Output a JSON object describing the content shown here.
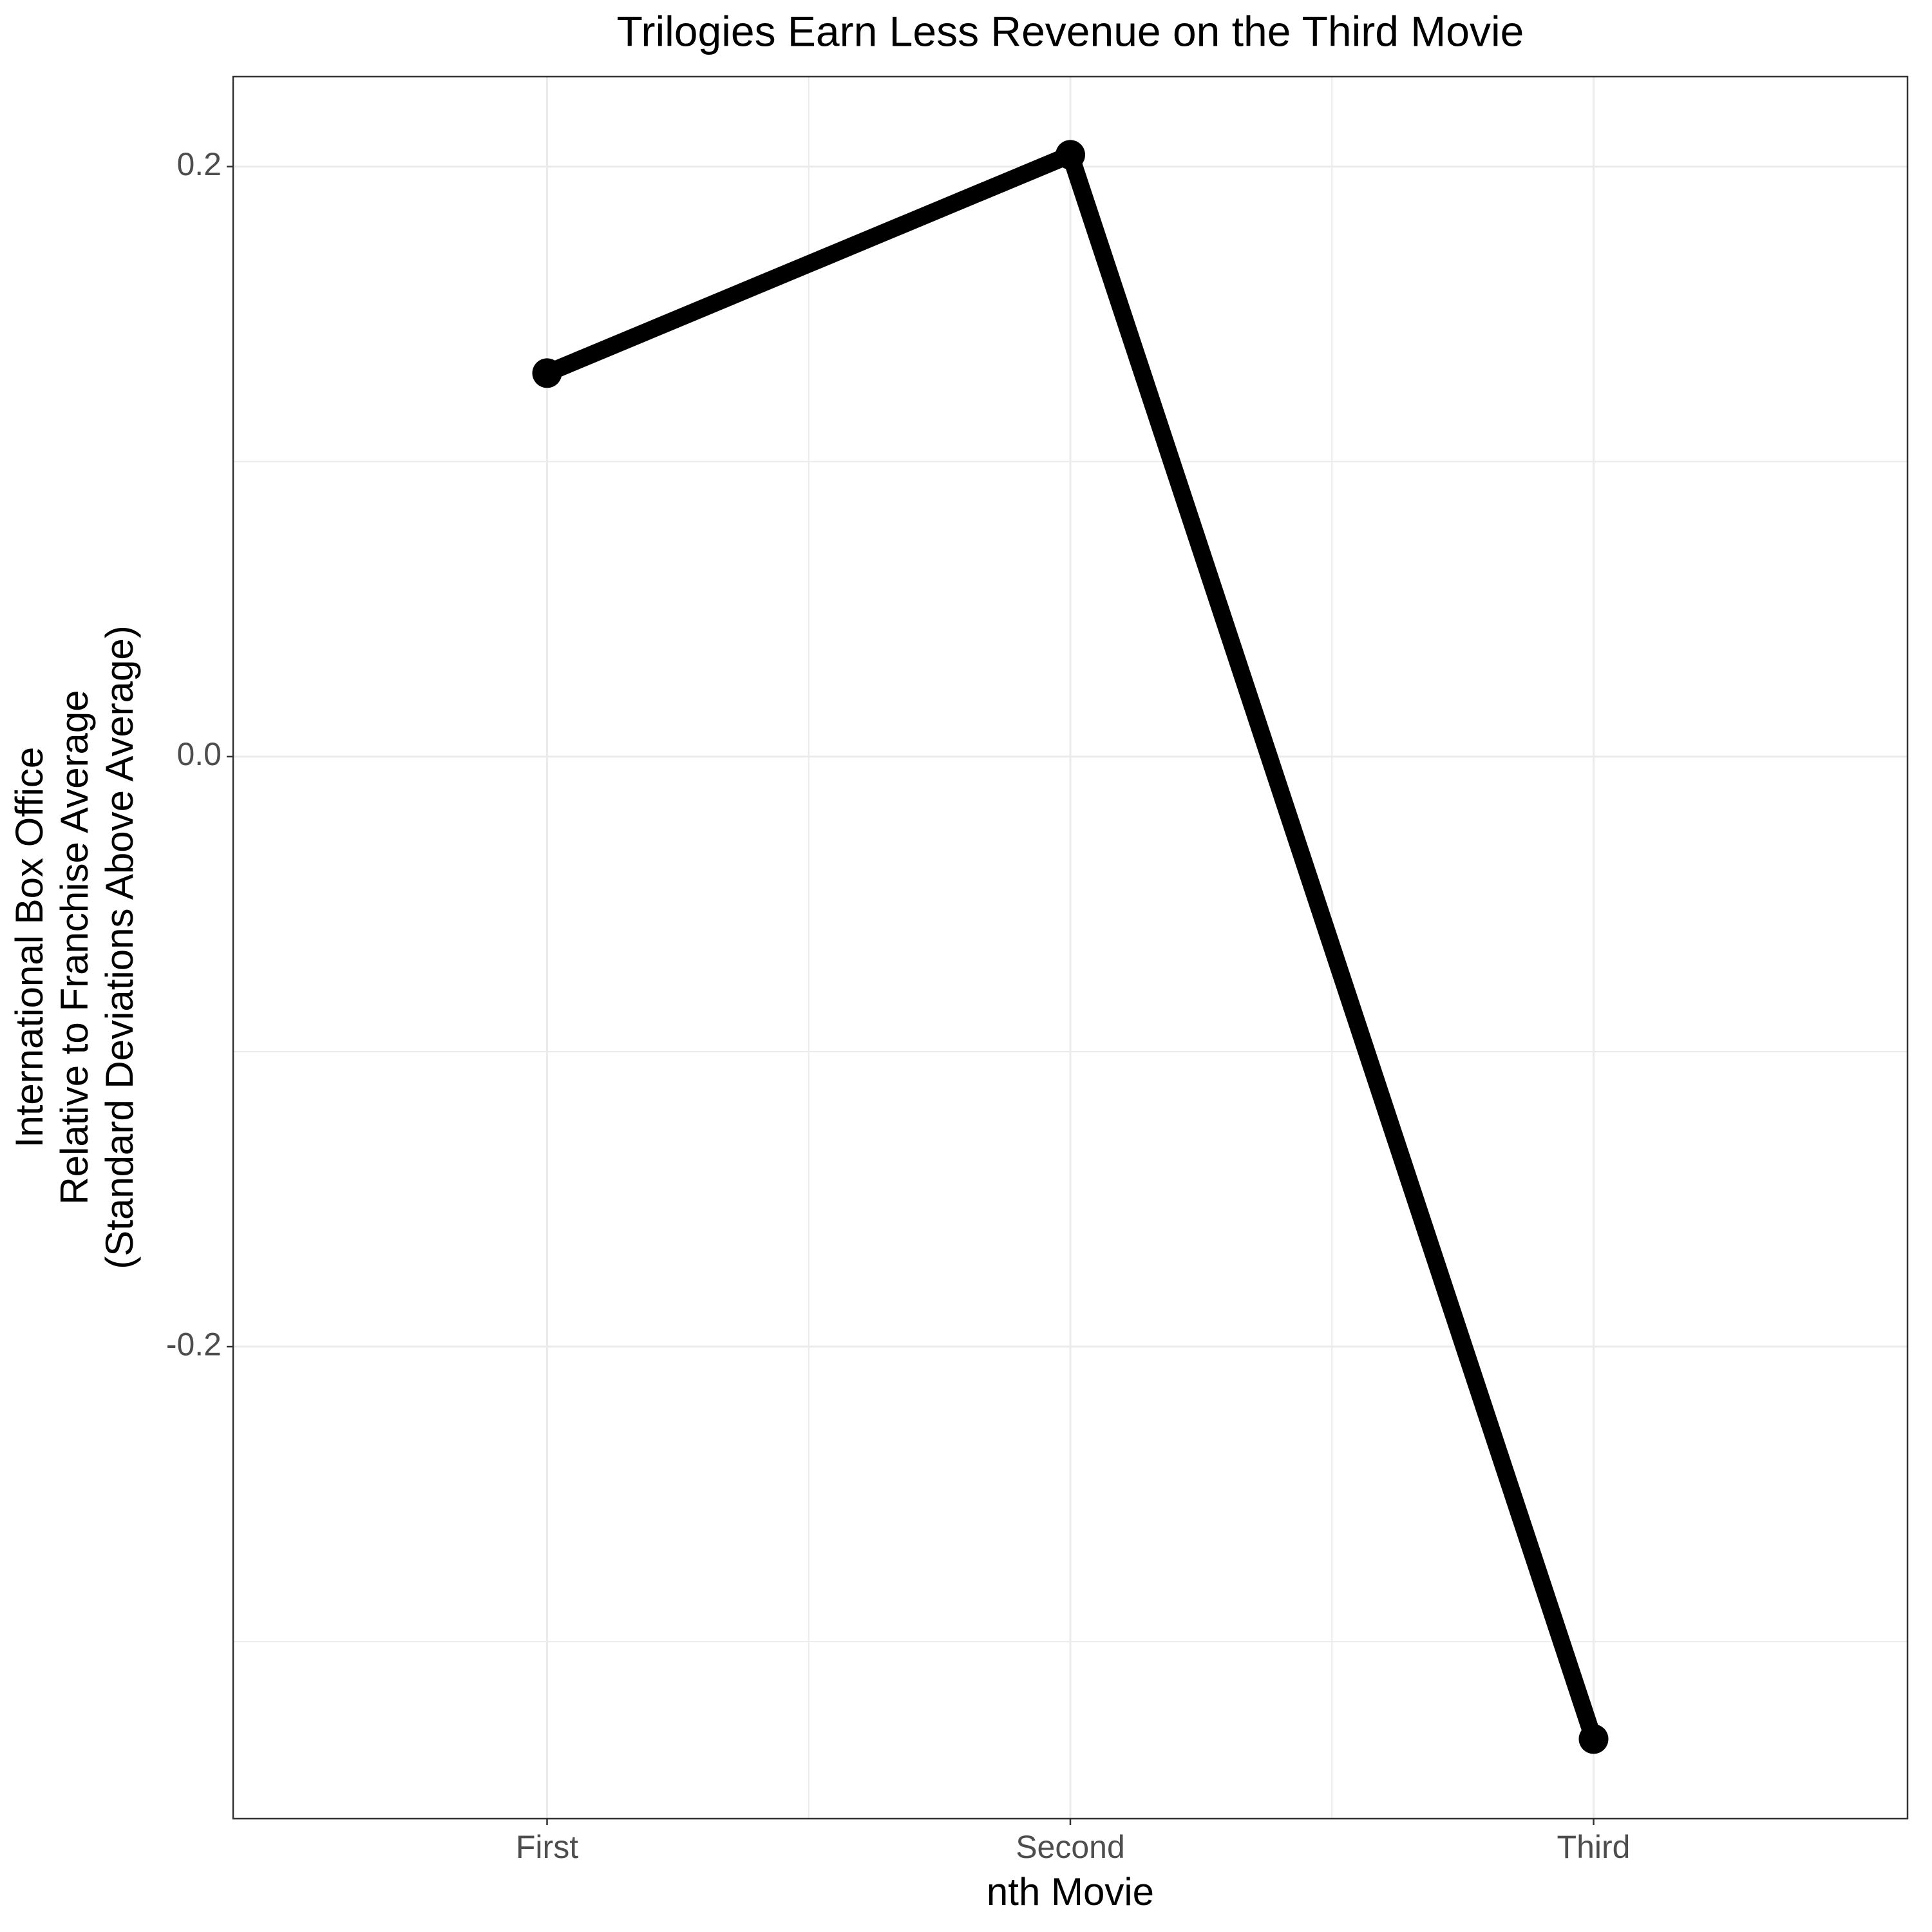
{
  "chart_data": {
    "type": "line",
    "title": "Trilogies Earn Less Revenue on the Third Movie",
    "x_label": "nth Movie",
    "y_label": [
      "International Box Office",
      "Relative to Franchise Average",
      "(Standard Deviations Above Average)"
    ],
    "categories": [
      "First",
      "Second",
      "Third"
    ],
    "values": [
      0.13,
      0.204,
      -0.333
    ],
    "color": "#000000",
    "ylim": [
      -0.36,
      0.2305
    ],
    "yticks": [
      {
        "value": 0.2,
        "label": "0.2"
      },
      {
        "value": 0,
        "label": "0.0"
      },
      {
        "value": -0.2,
        "label": "-0.2"
      }
    ],
    "grid": true
  }
}
